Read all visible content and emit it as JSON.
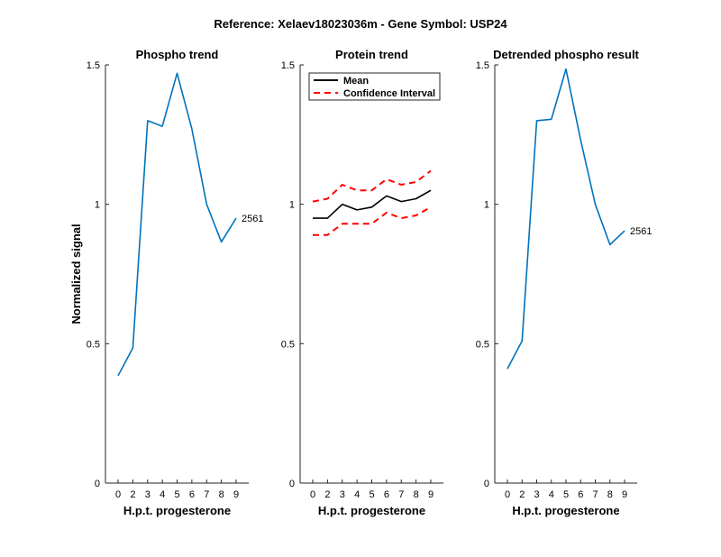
{
  "figure": {
    "suptitle": "Reference:  Xelaev18023036m - Gene Symbol:  USP24"
  },
  "chart_data": [
    {
      "type": "line",
      "title": "Phospho trend",
      "xlabel": "H.p.t. progesterone",
      "ylabel": "Normalized signal",
      "categories": [
        "0",
        "2",
        "3",
        "4",
        "5",
        "6",
        "7",
        "8",
        "9"
      ],
      "ylim": [
        0,
        1.5
      ],
      "yticks": [
        0,
        0.5,
        1,
        1.5
      ],
      "ytick_labels": [
        "0",
        "0.5",
        "1",
        "1.5"
      ],
      "grid": false,
      "series": [
        {
          "values": [
            0.385,
            0.485,
            1.3,
            1.28,
            1.47,
            1.27,
            1.0,
            0.865,
            0.95
          ],
          "color": "#0072BD",
          "style": "solid",
          "end_label": "2561"
        }
      ]
    },
    {
      "type": "line",
      "title": "Protein trend",
      "xlabel": "H.p.t. progesterone",
      "ylabel": "",
      "categories": [
        "0",
        "2",
        "3",
        "4",
        "5",
        "6",
        "7",
        "8",
        "9"
      ],
      "ylim": [
        0,
        1.5
      ],
      "yticks": [
        0,
        0.5,
        1,
        1.5
      ],
      "ytick_labels": [
        "0",
        "0.5",
        "1",
        "1.5"
      ],
      "grid": false,
      "legend": {
        "placement": "top-left"
      },
      "series": [
        {
          "name": "Mean",
          "values": [
            0.95,
            0.95,
            1.0,
            0.98,
            0.99,
            1.03,
            1.01,
            1.02,
            1.05
          ],
          "color": "#000000",
          "style": "solid"
        },
        {
          "name": "Confidence Interval",
          "values": [
            1.01,
            1.02,
            1.07,
            1.05,
            1.05,
            1.09,
            1.07,
            1.08,
            1.12
          ],
          "color": "#FF0000",
          "style": "dashed"
        },
        {
          "values": [
            0.89,
            0.89,
            0.93,
            0.93,
            0.93,
            0.97,
            0.95,
            0.96,
            0.99
          ],
          "color": "#FF0000",
          "style": "dashed"
        }
      ]
    },
    {
      "type": "line",
      "title": "Detrended phospho result",
      "xlabel": "H.p.t. progesterone",
      "ylabel": "",
      "categories": [
        "0",
        "2",
        "3",
        "4",
        "5",
        "6",
        "7",
        "8",
        "9"
      ],
      "ylim": [
        0,
        1.5
      ],
      "yticks": [
        0,
        0.5,
        1,
        1.5
      ],
      "ytick_labels": [
        "0",
        "0.5",
        "1",
        "1.5"
      ],
      "grid": false,
      "series": [
        {
          "values": [
            0.41,
            0.51,
            1.3,
            1.305,
            1.485,
            1.23,
            1.0,
            0.855,
            0.905
          ],
          "color": "#0072BD",
          "style": "solid",
          "end_label": "2561"
        }
      ]
    }
  ]
}
